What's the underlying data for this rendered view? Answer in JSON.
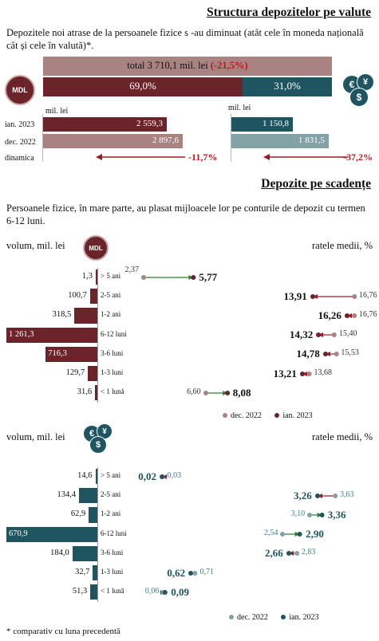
{
  "colors": {
    "dark_red": "#6b252a",
    "dusty": "#a98382",
    "teal": "#1f5560",
    "teal_light": "#82a2a6",
    "arrow_red": "#9e1b20",
    "green": "#2e7d32",
    "axis": "#999999"
  },
  "section1": {
    "title": "Structura depozitelor pe valute",
    "text": "Depozitele noi atrase de la persoanele fizice s -au diminuat (atât cele în moneda națională cât și cele în valută)*.",
    "total_label": "total 3 710,1 mil. lei",
    "total_change": "(-21,5%)",
    "mdl_badge": "MDL",
    "mdl_share": "69,0%",
    "fx_share": "31,0%",
    "mdl_share_value": 69.0,
    "unit_left": "mil. lei",
    "unit_right": "mil. lei",
    "row_labels": [
      "ian. 2023",
      "dec. 2022",
      "dinamica"
    ],
    "mdl": {
      "jan2023": 2559.3,
      "dec2022": 2897.6,
      "jan_label": "2 559,3",
      "dec_label": "2 897,6",
      "dynamics": "-11,7%"
    },
    "fx": {
      "jan2023": 1150.8,
      "dec2022": 1831.5,
      "jan_label": "1 150,8",
      "dec_label": "1 831,5",
      "dynamics": "-37,2%"
    }
  },
  "section2": {
    "title": "Depozite pe scadențe",
    "text": "Persoanele fizice, în mare parte, au plasat mijloacele lor pe conturile de depozit cu termen 6-12 luni.",
    "left_label": "volum, mil. lei",
    "right_label": "ratele medii, %",
    "legend_dec": "dec. 2022",
    "legend_jan": "ian. 2023"
  },
  "chart_data": [
    {
      "type": "bar",
      "title": "Depozite pe scadențe, MDL",
      "categories": [
        "> 5 ani",
        "2-5 ani",
        "1-2 ani",
        "6-12 luni",
        "3-6 luni",
        "1-3 luni",
        "< 1 lună"
      ],
      "volume_labels": [
        "1,3",
        "100,7",
        "318,5",
        "1 261,3",
        "716,3",
        "129,7",
        "31,6"
      ],
      "volume": [
        1.3,
        100.7,
        318.5,
        1261.3,
        716.3,
        129.7,
        31.6
      ],
      "series": [
        {
          "name": "dec. 2022",
          "values": [
            2.37,
            16.76,
            16.76,
            15.4,
            15.53,
            13.68,
            6.6
          ],
          "labels": [
            "2,37",
            "16,76",
            "16,76",
            "15,40",
            "15,53",
            "13,68",
            "6,60"
          ]
        },
        {
          "name": "ian. 2023",
          "values": [
            5.77,
            13.91,
            16.26,
            14.32,
            14.78,
            13.21,
            8.08
          ],
          "labels": [
            "5,77",
            "13,91",
            "16,26",
            "14,32",
            "14,78",
            "13,21",
            "8,08"
          ]
        }
      ],
      "xlabel": "",
      "ylabel": "volum, mil. lei"
    },
    {
      "type": "bar",
      "title": "Depozite pe scadențe, valută",
      "categories": [
        "> 5 ani",
        "2-5 ani",
        "1-2 ani",
        "6-12 luni",
        "3-6 luni",
        "1-3 luni",
        "< 1 lună"
      ],
      "volume_labels": [
        "14,6",
        "134,4",
        "62,9",
        "670,9",
        "184,0",
        "32,7",
        "51,3"
      ],
      "volume": [
        14.6,
        134.4,
        62.9,
        670.9,
        184.0,
        32.7,
        51.3
      ],
      "series": [
        {
          "name": "dec. 2022",
          "values": [
            0.03,
            3.63,
            3.1,
            2.54,
            2.83,
            0.71,
            0.06
          ],
          "labels": [
            "0,03",
            "3,63",
            "3,10",
            "2,54",
            "2,83",
            "0,71",
            "0,06"
          ]
        },
        {
          "name": "ian. 2023",
          "values": [
            0.02,
            3.26,
            3.36,
            2.9,
            2.66,
            0.62,
            0.09
          ],
          "labels": [
            "0,02",
            "3,26",
            "3,36",
            "2,90",
            "2,66",
            "0,62",
            "0,09"
          ]
        }
      ],
      "xlabel": "",
      "ylabel": "volum, mil. lei"
    }
  ],
  "footnote": "* comparativ cu luna precedentă"
}
